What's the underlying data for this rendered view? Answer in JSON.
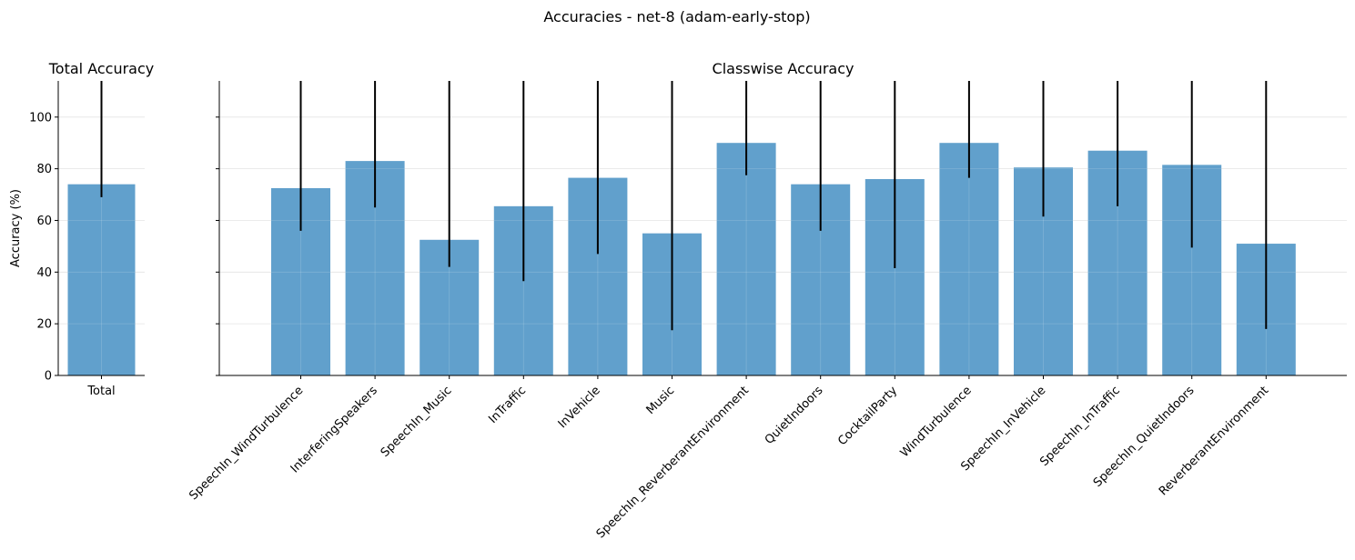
{
  "figure_title": "Accuracies - net-8 (adam-early-stop)",
  "colors": {
    "bar": "#5f9fcb",
    "errorbar": "#000000",
    "grid": "#e0e0e0"
  },
  "chart_data": [
    {
      "type": "bar",
      "title": "Total Accuracy",
      "ylabel": "Accuracy (%)",
      "xlabel": "",
      "ylim": [
        0,
        114
      ],
      "yticks": [
        0,
        20,
        40,
        60,
        80,
        100
      ],
      "grid": true,
      "categories": [
        "Total"
      ],
      "values": [
        74
      ],
      "error": [
        5
      ]
    },
    {
      "type": "bar",
      "title": "Classwise Accuracy",
      "ylabel": "",
      "xlabel": "",
      "ylim": [
        0,
        114
      ],
      "yticks": [
        0,
        20,
        40,
        60,
        80,
        100
      ],
      "grid": true,
      "categories": [
        "SpeechIn_WindTurbulence",
        "InterferingSpeakers",
        "SpeechIn_Music",
        "InTraffic",
        "InVehicle",
        "Music",
        "SpeechIn_ReverberantEnvironment",
        "QuietIndoors",
        "CocktailParty",
        "WindTurbulence",
        "SpeechIn_InVehicle",
        "SpeechIn_InTraffic",
        "SpeechIn_QuietIndoors",
        "ReverberantEnvironment"
      ],
      "values": [
        72.5,
        83,
        52.5,
        65.5,
        76.5,
        55,
        90,
        74,
        76,
        90,
        80.5,
        87,
        81.5,
        51
      ],
      "error": [
        16.5,
        18,
        10.5,
        29,
        29.5,
        37.5,
        12.5,
        18,
        34.5,
        13.5,
        19,
        21.5,
        32,
        33
      ]
    }
  ]
}
